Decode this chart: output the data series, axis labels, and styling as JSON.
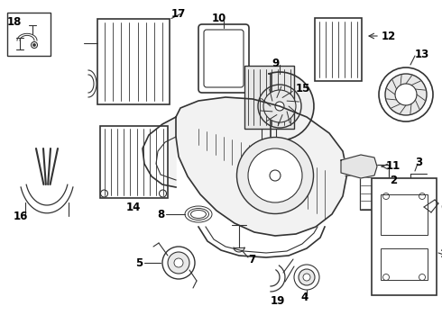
{
  "bg_color": "#ffffff",
  "line_color": "#333333",
  "label_color": "#000000",
  "label_fontsize": 8.5,
  "fig_width": 4.9,
  "fig_height": 3.6,
  "dpi": 100
}
